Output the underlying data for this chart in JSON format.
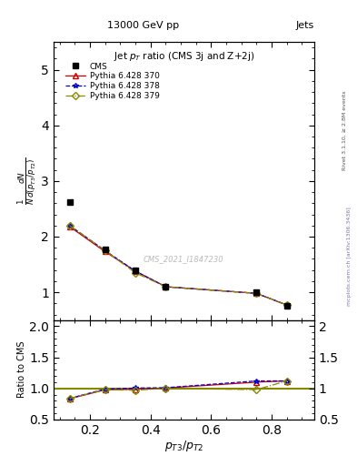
{
  "title": "13000 GeV pp",
  "title_right": "Jets",
  "plot_title": "Jet $p_{T}$ ratio (CMS 3j and Z+2j)",
  "xlabel": "$p_{T3}/p_{T2}$",
  "ylabel_ratio": "Ratio to CMS",
  "watermark": "CMS_2021_I1847230",
  "side_label": "mcplots.cern.ch [arXiv:1306.3436]",
  "rivet_label": "Rivet 3.1.10, ≥ 2.8M events",
  "cms_x": [
    0.133,
    0.25,
    0.35,
    0.45,
    0.75,
    0.85
  ],
  "cms_y": [
    2.62,
    1.77,
    1.4,
    1.1,
    1.0,
    0.75
  ],
  "py370_x": [
    0.133,
    0.25,
    0.35,
    0.45,
    0.75,
    0.85
  ],
  "py370_y": [
    2.18,
    1.73,
    1.38,
    1.1,
    0.98,
    0.77
  ],
  "py378_x": [
    0.133,
    0.25,
    0.35,
    0.45,
    0.75,
    0.85
  ],
  "py378_y": [
    2.2,
    1.75,
    1.38,
    1.1,
    0.98,
    0.77
  ],
  "py379_x": [
    0.133,
    0.25,
    0.35,
    0.45,
    0.75,
    0.85
  ],
  "py379_y": [
    2.2,
    1.75,
    1.35,
    1.1,
    0.98,
    0.77
  ],
  "ratio_py370": [
    0.832,
    0.977,
    0.987,
    1.005,
    1.1,
    1.12
  ],
  "ratio_py378": [
    0.839,
    0.988,
    1.005,
    1.01,
    1.12,
    1.12
  ],
  "ratio_py379": [
    0.839,
    0.977,
    0.97,
    1.0,
    0.98,
    1.12
  ],
  "cms_color": "#000000",
  "py370_color": "#cc0000",
  "py378_color": "#0000cc",
  "py379_color": "#888800",
  "xlim": [
    0.08,
    0.94
  ],
  "ylim_main": [
    0.5,
    5.5
  ],
  "ylim_ratio": [
    0.5,
    2.1
  ],
  "yticks_main": [
    1,
    2,
    3,
    4,
    5
  ],
  "yticks_ratio": [
    0.5,
    1.0,
    1.5,
    2.0
  ],
  "xticks": [
    0.2,
    0.4,
    0.6,
    0.8
  ]
}
